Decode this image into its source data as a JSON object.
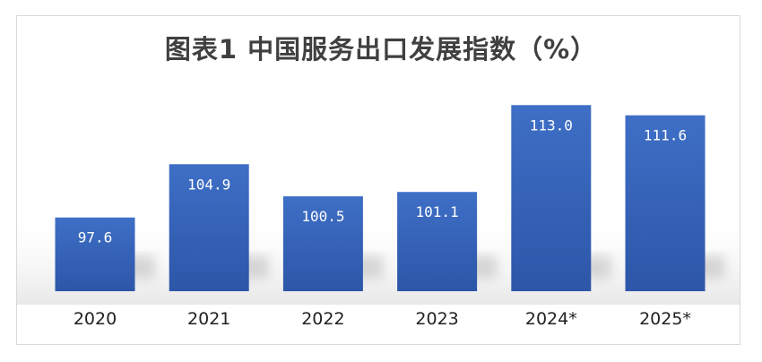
{
  "chart_data": {
    "type": "bar",
    "title": "图表1  中国服务出口发展指数（%）",
    "categories": [
      "2020",
      "2021",
      "2022",
      "2023",
      "2024*",
      "2025*"
    ],
    "values": [
      97.6,
      104.9,
      100.5,
      101.1,
      113.0,
      111.6
    ],
    "data_labels": [
      "97.6",
      "104.9",
      "100.5",
      "101.1",
      "113.0",
      "111.6"
    ],
    "xlabel": "",
    "ylabel": "",
    "ylim": [
      87.5,
      115
    ],
    "grid": false,
    "legend": "none",
    "bar_color": "#3e6fc6",
    "bar_color_dark": "#2d56a8",
    "label_color": "#ffffff",
    "axis_label_color": "#222222"
  }
}
